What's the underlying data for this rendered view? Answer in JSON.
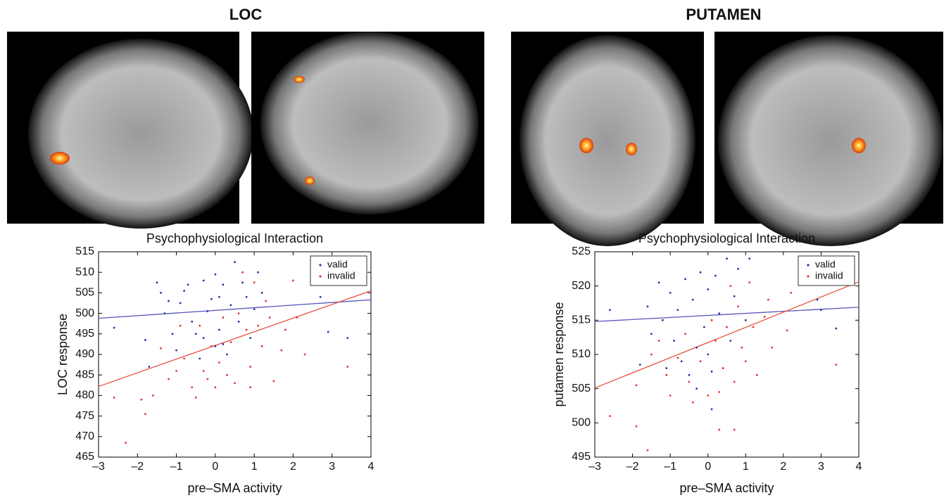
{
  "panel_titles": [
    "LOC",
    "PUTAMEN"
  ],
  "chart_data": [
    {
      "type": "scatter",
      "title": "Psychophysiological Interaction",
      "xlabel": "pre–SMA activity",
      "ylabel": "LOC response",
      "xlim": [
        -3,
        4
      ],
      "ylim": [
        465,
        515
      ],
      "xticks": [
        {
          "value": -3,
          "label": "–3"
        },
        {
          "value": -2,
          "label": "–2"
        },
        {
          "value": -1,
          "label": "–1"
        },
        0,
        1,
        2,
        3,
        4
      ],
      "yticks": [
        465,
        470,
        475,
        480,
        485,
        490,
        495,
        500,
        505,
        510,
        515
      ],
      "legend": "upper right",
      "series": [
        {
          "name": "valid",
          "color": "#2f2fa0",
          "x": [
            -2.6,
            -1.8,
            -1.5,
            -1.4,
            -1.3,
            -1.2,
            -1,
            -0.9,
            -0.8,
            -0.7,
            -0.6,
            -0.5,
            -0.4,
            -0.3,
            -0.2,
            -0.1,
            0,
            0,
            0.1,
            0.1,
            0.2,
            0.3,
            0.4,
            0.5,
            0.6,
            0.7,
            0.8,
            0.9,
            1,
            1.1,
            1.2,
            -1.7,
            2.9,
            3.4,
            2.7,
            -1.1,
            0.2,
            -0.3
          ],
          "values": [
            496.5,
            493.5,
            507.5,
            505,
            500,
            503,
            491,
            502.5,
            505.5,
            507,
            498,
            495,
            489,
            494,
            500.5,
            503.5,
            492,
            509.5,
            504,
            496,
            507,
            490,
            502,
            512.5,
            498,
            507.5,
            504,
            494,
            501,
            510,
            505,
            487,
            495.5,
            494,
            504,
            495,
            492.5,
            508
          ]
        },
        {
          "name": "invalid",
          "color": "#e8322b",
          "x": [
            -2.6,
            -2.3,
            -1.9,
            -1.8,
            -1.6,
            -1.4,
            -1.2,
            -1,
            -0.8,
            -0.6,
            -0.5,
            -0.4,
            -0.3,
            -0.2,
            -0.1,
            0,
            0.1,
            0.2,
            0.3,
            0.4,
            0.5,
            0.6,
            0.7,
            0.8,
            0.9,
            1,
            1.1,
            1.2,
            1.3,
            1.4,
            1.5,
            1.7,
            1.8,
            2,
            2.1,
            2.3,
            3.4,
            0.9,
            -0.9
          ],
          "values": [
            479.5,
            468.5,
            479,
            475.5,
            480,
            491.5,
            484,
            486,
            489,
            482,
            479.5,
            497,
            486,
            484,
            492,
            482,
            488,
            499,
            485,
            493,
            483,
            500,
            510,
            496,
            487,
            507.5,
            497,
            492,
            503,
            499,
            483.5,
            491,
            496,
            508,
            499,
            490,
            487,
            482,
            497
          ]
        }
      ],
      "fit_lines": [
        {
          "color": "#5555bb",
          "x": [
            -3,
            4
          ],
          "values": [
            498.8,
            503.3
          ]
        },
        {
          "color": "#e8503f",
          "x": [
            -3,
            4
          ],
          "values": [
            482.2,
            505.5
          ]
        }
      ]
    },
    {
      "type": "scatter",
      "title": "Psychophysiological Interaction",
      "xlabel": "pre–SMA activity",
      "ylabel": "putamen response",
      "xlim": [
        -3,
        4
      ],
      "ylim": [
        495,
        525
      ],
      "xticks": [
        {
          "value": -3,
          "label": "–3"
        },
        {
          "value": -2,
          "label": "–2"
        },
        {
          "value": -1,
          "label": "–1"
        },
        0,
        1,
        2,
        3,
        4
      ],
      "yticks": [
        495,
        500,
        505,
        510,
        515,
        520,
        525
      ],
      "legend": "upper right",
      "series": [
        {
          "name": "valid",
          "color": "#2f2fa0",
          "x": [
            -2.6,
            -1.8,
            -1.6,
            -1.5,
            -1.3,
            -1.2,
            -1,
            -0.9,
            -0.8,
            -0.7,
            -0.6,
            -0.5,
            -0.4,
            -0.3,
            -0.2,
            -0.1,
            0,
            0,
            0.1,
            0.2,
            0.3,
            0.4,
            0.5,
            0.6,
            0.7,
            0.8,
            1,
            1.1,
            -0.3,
            2.9,
            3,
            3.4,
            0.1,
            -1.1
          ],
          "values": [
            516.5,
            508.5,
            517,
            513,
            520.5,
            515,
            519,
            512,
            516.5,
            509,
            521,
            507,
            518,
            511,
            522,
            514,
            510,
            519.5,
            507.5,
            521.5,
            516,
            508,
            524,
            512,
            518.5,
            522.5,
            515,
            524,
            505,
            518,
            516.5,
            513.8,
            502,
            508
          ]
        },
        {
          "name": "invalid",
          "color": "#e8322b",
          "x": [
            -2.6,
            -1.9,
            -1.9,
            -1.6,
            -1.5,
            -1.3,
            -1.1,
            -1,
            -0.8,
            -0.6,
            -0.5,
            -0.4,
            -0.2,
            0,
            0.1,
            0.2,
            0.3,
            0.4,
            0.5,
            0.6,
            0.7,
            0.8,
            0.9,
            1,
            1.1,
            1.2,
            1.3,
            1.5,
            1.6,
            1.7,
            2.1,
            2.2,
            3.4,
            0.3,
            0.7
          ],
          "values": [
            501,
            499.5,
            505.5,
            496,
            510,
            512,
            507,
            504,
            509.5,
            513,
            506,
            503,
            509,
            504,
            515,
            512,
            499,
            508,
            514,
            520,
            506,
            517,
            511,
            509,
            520.5,
            514,
            507,
            515.5,
            518,
            511,
            513.5,
            519,
            508.5,
            504.5,
            499
          ]
        }
      ],
      "fit_lines": [
        {
          "color": "#5555bb",
          "x": [
            -3,
            4
          ],
          "values": [
            514.8,
            516.9
          ]
        },
        {
          "color": "#e8503f",
          "x": [
            -3,
            4
          ],
          "values": [
            505.1,
            520.6
          ]
        }
      ]
    }
  ]
}
